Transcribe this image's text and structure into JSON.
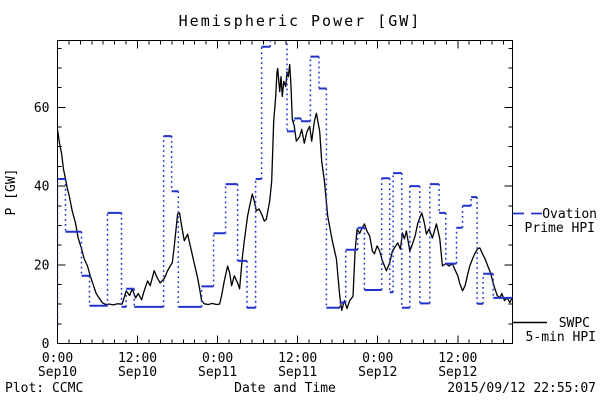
{
  "header": {
    "title": "Hemispheric Power [GW]"
  },
  "footer": {
    "plot_credit": "Plot: CCMC",
    "timestamp": "2015/09/12 22:55:07"
  },
  "legend": {
    "ovation_line1": "Ovation",
    "ovation_line2": "Prime HPI",
    "swpc_line1": "SWPC",
    "swpc_line2": "5-min HPI"
  },
  "chart_data": {
    "type": "line",
    "title": "Hemispheric Power [GW]",
    "xlabel": "Date and Time",
    "ylabel": "P [GW]",
    "x_unit": "hours since 2015-09-10 00:00",
    "xlim": [
      0,
      68.2
    ],
    "ylim": [
      0,
      77
    ],
    "grid": false,
    "legend_position": "right-outside",
    "x_ticks": [
      {
        "hour": 0,
        "time": "0:00",
        "date": "Sep10"
      },
      {
        "hour": 12,
        "time": "12:00",
        "date": "Sep10"
      },
      {
        "hour": 24,
        "time": "0:00",
        "date": "Sep11"
      },
      {
        "hour": 36,
        "time": "12:00",
        "date": "Sep11"
      },
      {
        "hour": 48,
        "time": "0:00",
        "date": "Sep12"
      },
      {
        "hour": 60,
        "time": "12:00",
        "date": "Sep12"
      }
    ],
    "x_minor_divisions_per_major": 7,
    "y_ticks": [
      0,
      20,
      40,
      60
    ],
    "y_minor_step": 5,
    "series": [
      {
        "name": "SWPC 5-min HPI",
        "color": "#000000",
        "style": "solid-line",
        "points": [
          [
            0,
            54.4
          ],
          [
            0.3,
            50.9
          ],
          [
            0.6,
            48.4
          ],
          [
            0.9,
            44.3
          ],
          [
            1.2,
            41.8
          ],
          [
            1.5,
            39.2
          ],
          [
            1.8,
            37.2
          ],
          [
            2.2,
            33.7
          ],
          [
            2.7,
            30.6
          ],
          [
            3.1,
            26.8
          ],
          [
            3.6,
            24.1
          ],
          [
            4,
            21.5
          ],
          [
            4.5,
            19.7
          ],
          [
            4.9,
            17.2
          ],
          [
            5.4,
            14.7
          ],
          [
            5.8,
            12.7
          ],
          [
            6.3,
            11.4
          ],
          [
            6.7,
            10.4
          ],
          [
            7.2,
            9.9
          ],
          [
            7.8,
            10
          ],
          [
            8.4,
            9.8
          ],
          [
            9,
            10.1
          ],
          [
            9.7,
            10
          ],
          [
            10.3,
            13.4
          ],
          [
            10.8,
            12.2
          ],
          [
            11.2,
            13.9
          ],
          [
            11.7,
            11.6
          ],
          [
            12.1,
            12.7
          ],
          [
            12.6,
            11.1
          ],
          [
            13,
            13.4
          ],
          [
            13.5,
            15.9
          ],
          [
            13.9,
            14.7
          ],
          [
            14.5,
            18.5
          ],
          [
            15,
            16.5
          ],
          [
            15.4,
            15.4
          ],
          [
            16,
            16.5
          ],
          [
            16.5,
            18.5
          ],
          [
            16.9,
            19.7
          ],
          [
            17.2,
            20.5
          ],
          [
            17.5,
            24.8
          ],
          [
            18,
            32.9
          ],
          [
            18.3,
            33.2
          ],
          [
            18.6,
            29.9
          ],
          [
            19,
            26.1
          ],
          [
            19.5,
            27.8
          ],
          [
            19.9,
            24.8
          ],
          [
            20.5,
            20.3
          ],
          [
            21,
            16.7
          ],
          [
            21.3,
            13.9
          ],
          [
            21.6,
            10.9
          ],
          [
            22,
            10.1
          ],
          [
            22.6,
            9.9
          ],
          [
            23.2,
            10.2
          ],
          [
            23.8,
            9.9
          ],
          [
            24.3,
            10
          ],
          [
            24.6,
            12.2
          ],
          [
            25,
            15.9
          ],
          [
            25.5,
            19.7
          ],
          [
            25.8,
            18
          ],
          [
            26.1,
            14.7
          ],
          [
            26.5,
            17.2
          ],
          [
            27,
            15.4
          ],
          [
            27.3,
            13.9
          ],
          [
            27.7,
            21.8
          ],
          [
            28,
            26.1
          ],
          [
            28.5,
            32.4
          ],
          [
            28.8,
            34.9
          ],
          [
            29.2,
            38
          ],
          [
            29.5,
            36.2
          ],
          [
            29.8,
            33.7
          ],
          [
            30.2,
            34.2
          ],
          [
            30.6,
            32.9
          ],
          [
            31,
            31.1
          ],
          [
            31.3,
            31.6
          ],
          [
            31.8,
            36.2
          ],
          [
            32.1,
            41.3
          ],
          [
            32.4,
            56.5
          ],
          [
            32.7,
            62.8
          ],
          [
            32.9,
            69
          ],
          [
            33,
            69.9
          ],
          [
            33.3,
            64
          ],
          [
            33.5,
            67.8
          ],
          [
            33.7,
            62.8
          ],
          [
            33.9,
            66.6
          ],
          [
            34.2,
            65.3
          ],
          [
            34.4,
            69
          ],
          [
            34.6,
            67.8
          ],
          [
            34.8,
            70.9
          ],
          [
            35,
            65.3
          ],
          [
            35.2,
            57
          ],
          [
            35.5,
            55.2
          ],
          [
            35.8,
            51.4
          ],
          [
            36.3,
            52.6
          ],
          [
            36.6,
            54.4
          ],
          [
            37,
            50.9
          ],
          [
            37.4,
            53.9
          ],
          [
            37.8,
            55.2
          ],
          [
            38.1,
            51.4
          ],
          [
            38.5,
            56.5
          ],
          [
            38.8,
            58.5
          ],
          [
            39.3,
            53.9
          ],
          [
            39.6,
            46.3
          ],
          [
            40,
            41.3
          ],
          [
            40.5,
            32.4
          ],
          [
            41.2,
            26
          ],
          [
            41.8,
            21.5
          ],
          [
            42.3,
            12.2
          ],
          [
            42.6,
            8.4
          ],
          [
            43,
            10.9
          ],
          [
            43.4,
            8.9
          ],
          [
            43.8,
            10.9
          ],
          [
            44.3,
            12
          ],
          [
            44.6,
            23.5
          ],
          [
            44.9,
            29.1
          ],
          [
            45.3,
            28
          ],
          [
            45.7,
            29.5
          ],
          [
            46,
            30.4
          ],
          [
            46.4,
            28.5
          ],
          [
            46.8,
            27.3
          ],
          [
            47.2,
            23.5
          ],
          [
            47.5,
            22.8
          ],
          [
            47.9,
            24.8
          ],
          [
            48.3,
            23.5
          ],
          [
            48.7,
            21
          ],
          [
            49.3,
            18.5
          ],
          [
            49.8,
            20.5
          ],
          [
            50.2,
            23.5
          ],
          [
            51,
            25.6
          ],
          [
            51.4,
            24
          ],
          [
            51.7,
            28.1
          ],
          [
            52,
            26.6
          ],
          [
            52.3,
            28.6
          ],
          [
            52.8,
            23.5
          ],
          [
            53.1,
            24.8
          ],
          [
            53.6,
            27.3
          ],
          [
            54,
            30.6
          ],
          [
            54.6,
            33.2
          ],
          [
            55,
            30.6
          ],
          [
            55.3,
            27.8
          ],
          [
            55.7,
            29.1
          ],
          [
            56.2,
            26.8
          ],
          [
            56.8,
            30.4
          ],
          [
            57.3,
            26.6
          ],
          [
            57.7,
            19.7
          ],
          [
            58.2,
            20.3
          ],
          [
            58.7,
            19.7
          ],
          [
            59.2,
            20.3
          ],
          [
            59.5,
            19
          ],
          [
            60,
            17.2
          ],
          [
            60.3,
            15.2
          ],
          [
            60.7,
            13.4
          ],
          [
            61.1,
            14.7
          ],
          [
            61.5,
            17.7
          ],
          [
            61.8,
            19.7
          ],
          [
            62.2,
            21.5
          ],
          [
            62.6,
            23
          ],
          [
            63,
            24.1
          ],
          [
            63.3,
            24.3
          ],
          [
            63.7,
            22.8
          ],
          [
            64.1,
            21.5
          ],
          [
            64.5,
            19.7
          ],
          [
            64.9,
            18
          ],
          [
            65.2,
            16
          ],
          [
            65.5,
            14.2
          ],
          [
            65.9,
            12.2
          ],
          [
            66.3,
            11.6
          ],
          [
            66.6,
            12.7
          ],
          [
            67,
            10.9
          ],
          [
            67.4,
            11.6
          ],
          [
            67.8,
            10.4
          ],
          [
            68.1,
            11.4
          ]
        ]
      },
      {
        "name": "Ovation Prime HPI",
        "color": "#2233cc",
        "style": "step-dotted-connectors",
        "steps": [
          [
            0,
            1.2,
            41.8
          ],
          [
            1.2,
            3.6,
            28.4
          ],
          [
            3.6,
            4.8,
            17.2
          ],
          [
            4.8,
            7.5,
            9.6
          ],
          [
            7.5,
            9.6,
            33.2
          ],
          [
            9.6,
            10.3,
            9.3
          ],
          [
            10.3,
            11.5,
            13.9
          ],
          [
            11.5,
            15.9,
            9.3
          ],
          [
            15.9,
            17.1,
            52.7
          ],
          [
            17.1,
            18.1,
            38.7
          ],
          [
            18.1,
            21.6,
            9.3
          ],
          [
            21.6,
            23.4,
            14.5
          ],
          [
            23.4,
            25.2,
            28
          ],
          [
            25.2,
            27,
            40.5
          ],
          [
            27,
            28.4,
            21
          ],
          [
            28.4,
            29.7,
            9.1
          ],
          [
            29.7,
            30.6,
            41.8
          ],
          [
            30.6,
            31.9,
            75.4
          ],
          [
            31.9,
            34.4,
            77.5
          ],
          [
            34.4,
            35.5,
            53.9
          ],
          [
            35.5,
            36.5,
            57.2
          ],
          [
            36.5,
            37.9,
            56.5
          ],
          [
            37.9,
            39.2,
            72.9
          ],
          [
            39.2,
            40.3,
            64.8
          ],
          [
            40.3,
            42.3,
            9.1
          ],
          [
            42.3,
            43.2,
            10.4
          ],
          [
            43.2,
            45,
            23.8
          ],
          [
            45,
            46,
            29.4
          ],
          [
            46,
            48.6,
            13.6
          ],
          [
            48.6,
            49.8,
            42
          ],
          [
            49.8,
            50.3,
            13
          ],
          [
            50.3,
            51.6,
            43.3
          ],
          [
            51.6,
            52.8,
            9.1
          ],
          [
            52.8,
            54.3,
            40
          ],
          [
            54.3,
            55.8,
            10.2
          ],
          [
            55.8,
            57.2,
            40.5
          ],
          [
            57.2,
            58.2,
            33.2
          ],
          [
            58.2,
            59.8,
            20.3
          ],
          [
            59.8,
            60.7,
            29.4
          ],
          [
            60.7,
            62,
            35
          ],
          [
            62,
            62.9,
            37.2
          ],
          [
            62.9,
            63.8,
            10.1
          ],
          [
            63.8,
            65.3,
            17.7
          ],
          [
            65.3,
            68.2,
            11.6
          ]
        ]
      }
    ]
  }
}
